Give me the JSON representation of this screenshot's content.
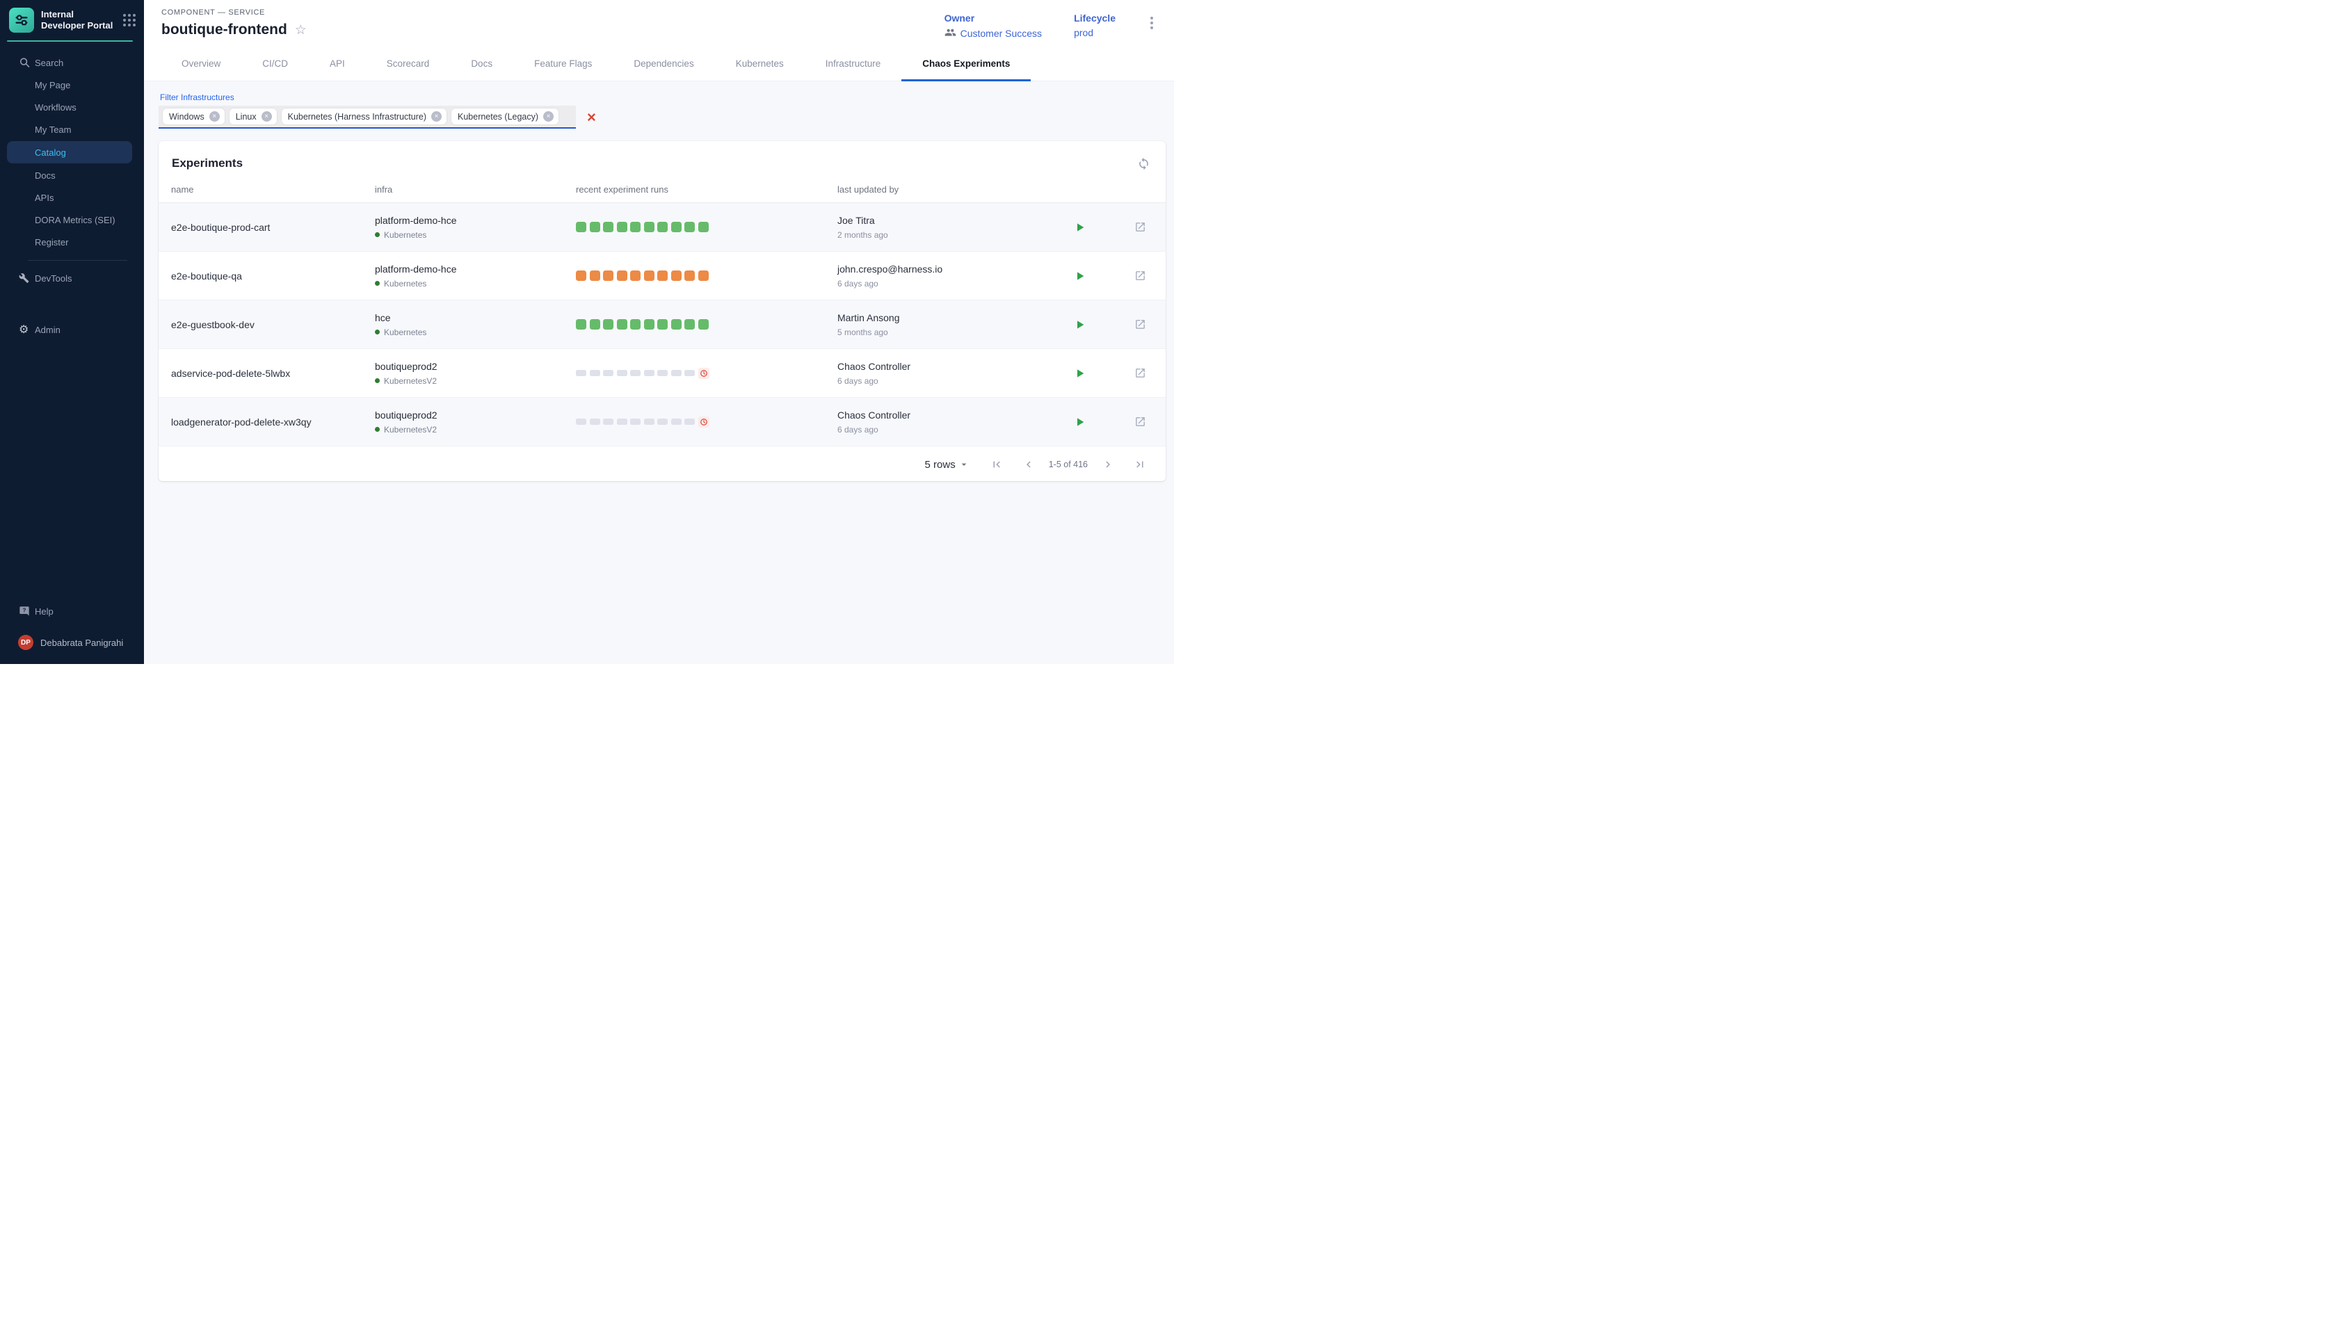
{
  "sidebar": {
    "logo_title": "Internal Developer Portal",
    "items": [
      {
        "label": "Search",
        "icon": "search",
        "active": false
      },
      {
        "label": "My Page",
        "icon": null,
        "active": false
      },
      {
        "label": "Workflows",
        "icon": null,
        "active": false
      },
      {
        "label": "My Team",
        "icon": null,
        "active": false
      },
      {
        "label": "Catalog",
        "icon": null,
        "active": true
      },
      {
        "label": "Docs",
        "icon": null,
        "active": false
      },
      {
        "label": "APIs",
        "icon": null,
        "active": false
      },
      {
        "label": "DORA Metrics (SEI)",
        "icon": null,
        "active": false
      },
      {
        "label": "Register",
        "icon": null,
        "active": false
      }
    ],
    "devtools_label": "DevTools",
    "admin_label": "Admin",
    "help_label": "Help",
    "user": {
      "initials": "DP",
      "name": "Debabrata Panigrahi"
    }
  },
  "header": {
    "breadcrumb": "COMPONENT — SERVICE",
    "title": "boutique-frontend",
    "owner_label": "Owner",
    "owner_value": "Customer Success",
    "lifecycle_label": "Lifecycle",
    "lifecycle_value": "prod"
  },
  "tabs": [
    {
      "label": "Overview",
      "active": false
    },
    {
      "label": "CI/CD",
      "active": false
    },
    {
      "label": "API",
      "active": false
    },
    {
      "label": "Scorecard",
      "active": false
    },
    {
      "label": "Docs",
      "active": false
    },
    {
      "label": "Feature Flags",
      "active": false
    },
    {
      "label": "Dependencies",
      "active": false
    },
    {
      "label": "Kubernetes",
      "active": false
    },
    {
      "label": "Infrastructure",
      "active": false
    },
    {
      "label": "Chaos Experiments",
      "active": true
    }
  ],
  "filter": {
    "label": "Filter Infrastructures",
    "chips": [
      "Windows",
      "Linux",
      "Kubernetes (Harness Infrastructure)",
      "Kubernetes (Legacy)"
    ]
  },
  "experiments": {
    "title": "Experiments",
    "columns": [
      "name",
      "infra",
      "recent experiment runs",
      "last updated by"
    ],
    "rows": [
      {
        "name": "e2e-boutique-prod-cart",
        "infra": "platform-demo-hce",
        "infra_type": "Kubernetes",
        "run_status": "passed",
        "run_count": 10,
        "scheduled": false,
        "updated_by": "Joe Titra",
        "updated_ago": "2 months ago"
      },
      {
        "name": "e2e-boutique-qa",
        "infra": "platform-demo-hce",
        "infra_type": "Kubernetes",
        "run_status": "failed",
        "run_count": 10,
        "scheduled": false,
        "updated_by": "john.crespo@harness.io",
        "updated_ago": "6 days ago"
      },
      {
        "name": "e2e-guestbook-dev",
        "infra": "hce",
        "infra_type": "Kubernetes",
        "run_status": "passed",
        "run_count": 10,
        "scheduled": false,
        "updated_by": "Martin Ansong",
        "updated_ago": "5 months ago"
      },
      {
        "name": "adservice-pod-delete-5lwbx",
        "infra": "boutiqueprod2",
        "infra_type": "KubernetesV2",
        "run_status": "pending",
        "run_count": 9,
        "scheduled": true,
        "updated_by": "Chaos Controller",
        "updated_ago": "6 days ago"
      },
      {
        "name": "loadgenerator-pod-delete-xw3qy",
        "infra": "boutiqueprod2",
        "infra_type": "KubernetesV2",
        "run_status": "pending",
        "run_count": 9,
        "scheduled": true,
        "updated_by": "Chaos Controller",
        "updated_ago": "6 days ago"
      }
    ]
  },
  "pagination": {
    "rows_per_page": "5 rows",
    "range": "1-5 of 416"
  },
  "colors": {
    "run_passed": "#66bb6a",
    "run_failed": "#ed8a45",
    "run_pending": "#dfe1ea",
    "clock_red": "#d9453c",
    "clock_bg": "#fcebe9",
    "status_dot_green": "#2e7d32",
    "accent_blue": "#2563eb",
    "tab_underline": "#1565d8",
    "avatar_red": "#c43e30"
  }
}
